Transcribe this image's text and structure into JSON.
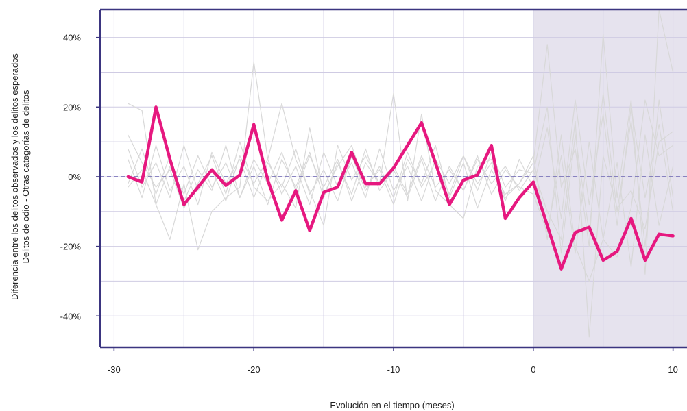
{
  "chart_data": {
    "type": "line",
    "xlabel": "Evolución en el tiempo (meses)",
    "ylabel": [
      "Diferencia entre los delitos observados y los delitos esperados",
      "Delitos de odio - Otras categorías de delitos"
    ],
    "xlim": [
      -31,
      11
    ],
    "ylim": [
      -49,
      48
    ],
    "x_ticks": [
      -30,
      -20,
      -10,
      0,
      10
    ],
    "x_tick_labels": [
      "-30",
      "-20",
      "-10",
      "0",
      "10"
    ],
    "y_ticks": [
      -40,
      -20,
      0,
      20,
      40
    ],
    "y_tick_labels": [
      "-40%",
      "-20%",
      "0%",
      "20%",
      "40%"
    ],
    "shaded_region": {
      "x_from": 0,
      "x_to": 11,
      "color": "#e6e3ee"
    },
    "zero_line": {
      "y": 0,
      "style": "dashed",
      "color": "#7b74b9"
    },
    "grid": true,
    "colors": {
      "main_series": "#e6187f",
      "background_series": "#d8d8d8",
      "frame": "#3b3580",
      "grid": "#cfcbe3"
    },
    "main_series": {
      "x": [
        -29,
        -28,
        -27,
        -26,
        -25,
        -24,
        -23,
        -22,
        -21,
        -20,
        -19,
        -18,
        -17,
        -16,
        -15,
        -14,
        -13,
        -12,
        -11,
        -10,
        -9,
        -8,
        -7,
        -6,
        -5,
        -4,
        -3,
        -2,
        -1,
        0,
        1,
        2,
        3,
        4,
        5,
        6,
        7,
        8,
        9,
        10
      ],
      "y": [
        0,
        -1.5,
        20,
        5,
        -8,
        -3,
        2,
        -2.5,
        0.5,
        15,
        -1,
        -12.5,
        -4,
        -15.5,
        -4.5,
        -3,
        7,
        -2,
        -2,
        2.5,
        9,
        15.5,
        4,
        -8,
        -1,
        0.5,
        9,
        -12,
        -6,
        -1.5,
        -14,
        -26.5,
        -16,
        -14.5,
        -24,
        -21.5,
        -12,
        -24,
        -16.5,
        -17
      ]
    },
    "background_series": [
      {
        "x": [
          -29,
          -28,
          -27,
          -26,
          -25,
          -24,
          -23,
          -22,
          -21,
          -20,
          -19,
          -18,
          -17,
          -16,
          -15,
          -14,
          -13,
          -12,
          -11,
          -10,
          -9,
          -8,
          -7,
          -6,
          -5,
          -4,
          -3,
          -2,
          -1,
          0,
          1,
          2,
          3,
          4,
          5,
          6,
          7,
          8,
          9,
          10
        ],
        "y": [
          21,
          19,
          -8,
          -18,
          -2,
          -21,
          -10,
          -6,
          -3,
          33,
          5,
          21,
          5,
          -4,
          -14,
          9,
          -1,
          6,
          -2,
          24,
          -7,
          18,
          -4,
          -8,
          -12,
          3,
          5,
          -6,
          -2,
          6,
          -18,
          12,
          -20,
          -30,
          -18,
          -23,
          -9,
          22,
          6,
          9
        ]
      },
      {
        "x": [
          -29,
          -28,
          -27,
          -26,
          -25,
          -24,
          -23,
          -22,
          -21,
          -20,
          -19,
          -18,
          -17,
          -16,
          -15,
          -14,
          -13,
          -12,
          -11,
          -10,
          -9,
          -8,
          -7,
          -6,
          -5,
          -4,
          -3,
          -2,
          -1,
          0,
          1,
          2,
          3,
          4,
          5,
          6,
          7,
          8,
          9,
          10
        ],
        "y": [
          12,
          4,
          -3,
          2,
          -9,
          -2,
          6,
          -5,
          10,
          -3,
          -7,
          -2,
          -9,
          14,
          -5,
          3,
          9,
          -3,
          2,
          -8,
          5,
          -2,
          9,
          -6,
          4,
          -9,
          2,
          -5,
          -2,
          4,
          38,
          -3,
          8,
          -20,
          41,
          -6,
          22,
          -28,
          48,
          30
        ]
      },
      {
        "x": [
          -29,
          -28,
          -27,
          -26,
          -25,
          -24,
          -23,
          -22,
          -21,
          -20,
          -19,
          -18,
          -17,
          -16,
          -15,
          -14,
          -13,
          -12,
          -11,
          -10,
          -9,
          -8,
          -7,
          -6,
          -5,
          -4,
          -3,
          -2,
          -1,
          0,
          1,
          2,
          3,
          4,
          5,
          6,
          7,
          8,
          9,
          10
        ],
        "y": [
          -3,
          2,
          -8,
          3,
          -5,
          6,
          -3,
          4,
          -6,
          5,
          -2,
          7,
          -4,
          6,
          -3,
          5,
          -7,
          4,
          -2,
          3,
          -5,
          6,
          -3,
          2,
          -4,
          5,
          -2,
          3,
          -4,
          2,
          -10,
          -18,
          16,
          -46,
          6,
          -9,
          -4,
          -15,
          10,
          13
        ]
      },
      {
        "x": [
          -29,
          -28,
          -27,
          -26,
          -25,
          -24,
          -23,
          -22,
          -21,
          -20,
          -19,
          -18,
          -17,
          -16,
          -15,
          -14,
          -13,
          -12,
          -11,
          -10,
          -9,
          -8,
          -7,
          -6,
          -5,
          -4,
          -3,
          -2,
          -1,
          0,
          1,
          2,
          3,
          4,
          5,
          6,
          7,
          8,
          9,
          10
        ],
        "y": [
          5,
          -6,
          9,
          -4,
          3,
          -8,
          7,
          -2,
          5,
          -6,
          4,
          -3,
          8,
          -5,
          2,
          -7,
          6,
          -4,
          3,
          -6,
          7,
          -3,
          4,
          -5,
          6,
          -2,
          4,
          -7,
          5,
          -3,
          14,
          -12,
          22,
          -8,
          18,
          -14,
          20,
          -6,
          15,
          -10
        ]
      },
      {
        "x": [
          -29,
          -28,
          -27,
          -26,
          -25,
          -24,
          -23,
          -22,
          -21,
          -20,
          -19,
          -18,
          -17,
          -16,
          -15,
          -14,
          -13,
          -12,
          -11,
          -10,
          -9,
          -8,
          -7,
          -6,
          -5,
          -4,
          -3,
          -2,
          -1,
          0,
          1,
          2,
          3,
          4,
          5,
          6,
          7,
          8,
          9,
          10
        ],
        "y": [
          -2,
          8,
          -5,
          6,
          -7,
          2,
          -4,
          9,
          -6,
          3,
          -8,
          5,
          -3,
          7,
          -6,
          4,
          -5,
          8,
          -4,
          2,
          -6,
          5,
          -7,
          3,
          -4,
          6,
          -5,
          2,
          -3,
          -5,
          -16,
          6,
          -22,
          10,
          -18,
          4,
          -26,
          12,
          -14,
          3
        ]
      },
      {
        "x": [
          -29,
          -28,
          -27,
          -26,
          -25,
          -24,
          -23,
          -22,
          -21,
          -20,
          -19,
          -18,
          -17,
          -16,
          -15,
          -14,
          -13,
          -12,
          -11,
          -10,
          -9,
          -8,
          -7,
          -6,
          -5,
          -4,
          -3,
          -2,
          -1,
          0,
          1,
          2,
          3,
          4,
          5,
          6,
          7,
          8,
          9,
          10
        ],
        "y": [
          8,
          -3,
          4,
          -6,
          9,
          -4,
          2,
          -7,
          6,
          -2,
          5,
          -5,
          3,
          -8,
          7,
          -3,
          4,
          -6,
          8,
          -4,
          3,
          -7,
          5,
          -2,
          6,
          -4,
          7,
          -3,
          2,
          1,
          20,
          -22,
          12,
          -16,
          24,
          -10,
          16,
          -20,
          22,
          -6
        ]
      }
    ]
  }
}
